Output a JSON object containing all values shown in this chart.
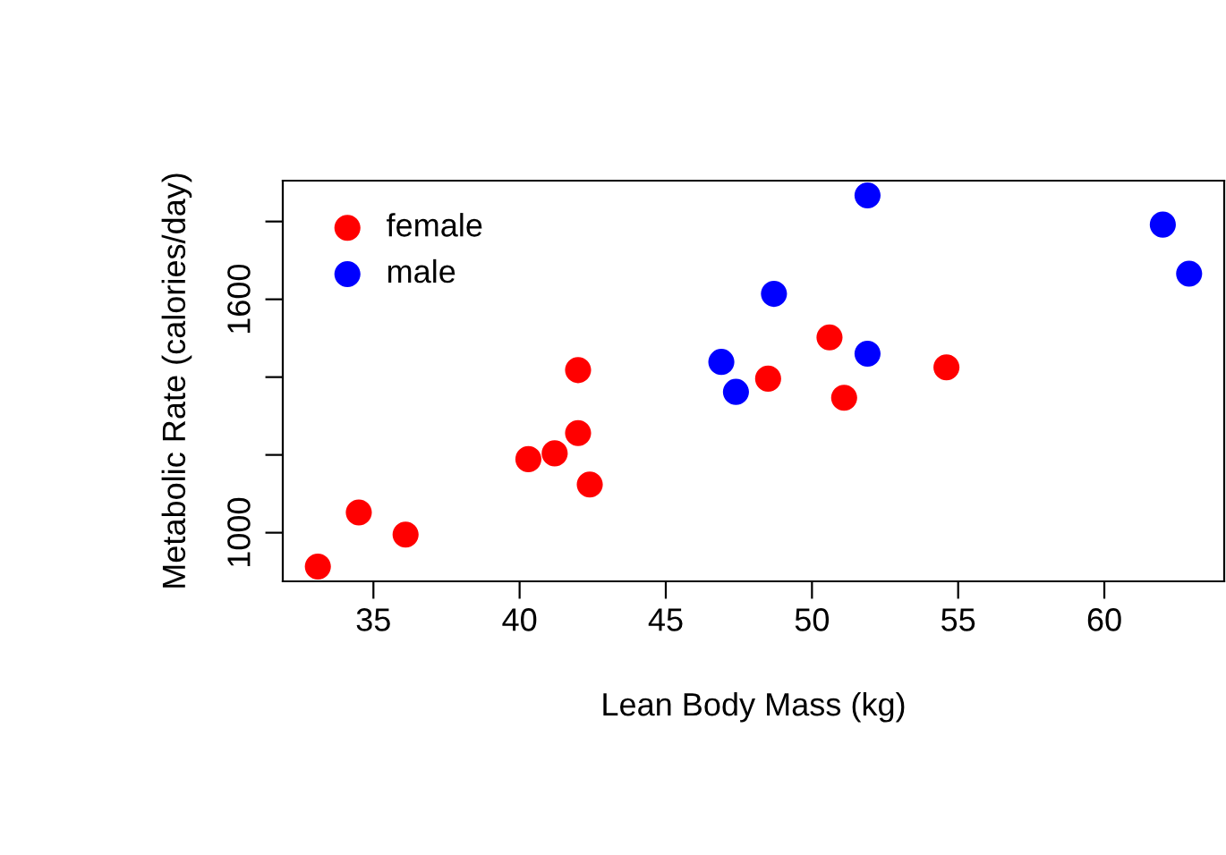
{
  "chart_data": {
    "type": "scatter",
    "xlabel": "Lean Body Mass (kg)",
    "ylabel": "Metabolic Rate (calories/day)",
    "series": [
      {
        "name": "female",
        "color": "#ff0000",
        "x": [
          36.1,
          54.6,
          48.5,
          42.0,
          50.6,
          42.0,
          40.3,
          33.1,
          42.4,
          34.5,
          51.1,
          41.2
        ],
        "values": [
          995,
          1425,
          1396,
          1418,
          1502,
          1256,
          1189,
          913,
          1124,
          1052,
          1347,
          1204
        ]
      },
      {
        "name": "male",
        "color": "#0000ff",
        "x": [
          62.0,
          62.9,
          47.4,
          48.7,
          51.9,
          51.9,
          46.9
        ],
        "values": [
          1792,
          1666,
          1362,
          1614,
          1460,
          1867,
          1439
        ]
      }
    ],
    "xlim": [
      31.9,
      64.1
    ],
    "ylim": [
      875,
      1905
    ],
    "xticks": [
      35,
      40,
      45,
      50,
      55,
      60
    ],
    "yticks": [
      1000,
      {
        "value": 1200,
        "label": null
      },
      {
        "value": 1400,
        "label": null
      },
      1600,
      {
        "value": 1800,
        "label": null
      }
    ],
    "marker": "circle",
    "legend": "top left",
    "grid": false
  }
}
